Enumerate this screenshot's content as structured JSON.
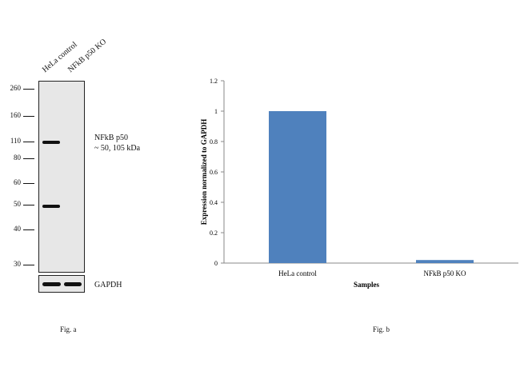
{
  "western_blot": {
    "lanes": [
      "HeLa control",
      "NFkB p50 KO"
    ],
    "mw_markers": [
      "260",
      "160",
      "110",
      "80",
      "60",
      "50",
      "40",
      "30"
    ],
    "target_label": "NFkB p50",
    "target_size": "~ 50, 105 kDa",
    "loading_control": "GAPDH",
    "figure_label": "Fig. a"
  },
  "chart_data": {
    "type": "bar",
    "categories": [
      "HeLa control",
      "NFkB p50 KO"
    ],
    "values": [
      1.0,
      0.02
    ],
    "title": "",
    "xlabel": "Samples",
    "ylabel": "Expression normalized to GAPDH",
    "ylim": [
      0,
      1.2
    ],
    "yticks": [
      "0",
      "0.2",
      "0.4",
      "0.6",
      "0.8",
      "1",
      "1.2"
    ],
    "bar_color": "#4f81bd",
    "grid": false,
    "figure_label": "Fig. b"
  }
}
